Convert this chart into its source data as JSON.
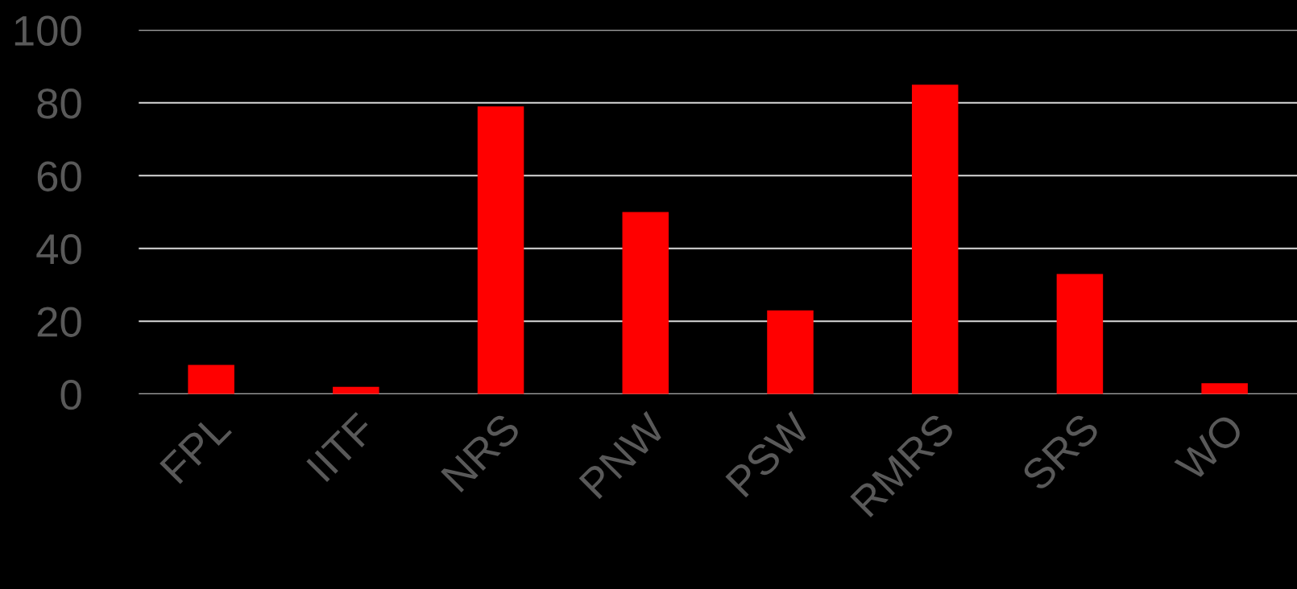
{
  "chart_data": {
    "type": "bar",
    "categories": [
      "FPL",
      "IITF",
      "NRS",
      "PNW",
      "PSW",
      "RMRS",
      "SRS",
      "WO"
    ],
    "values": [
      8,
      2,
      79,
      50,
      23,
      85,
      33,
      3
    ],
    "color": "#ff0000",
    "ylim": [
      0,
      100
    ],
    "yticks": [
      0,
      20,
      40,
      60,
      80,
      100
    ],
    "grid": "y"
  }
}
